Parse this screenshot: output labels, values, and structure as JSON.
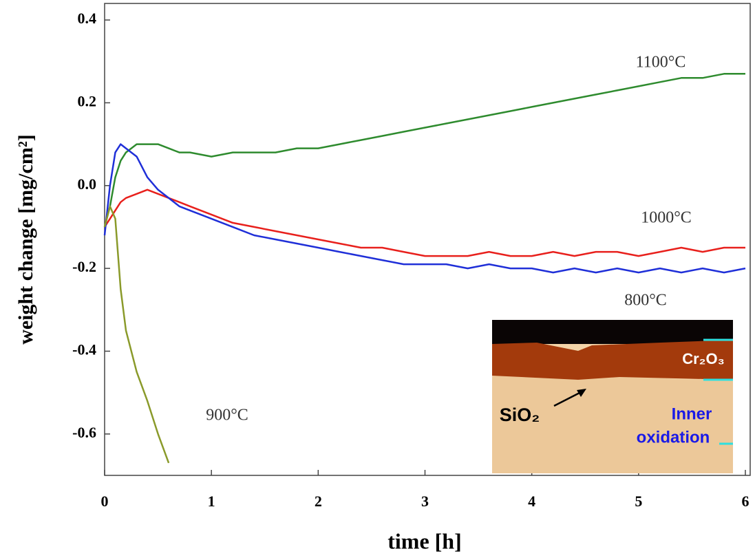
{
  "chart_data": {
    "type": "line",
    "xlabel": "time [h]",
    "ylabel": "weight change [mg/cm²]",
    "x": [
      0,
      0.05,
      0.1,
      0.15,
      0.2,
      0.3,
      0.4,
      0.5,
      0.6,
      0.7,
      0.8,
      1.0,
      1.2,
      1.4,
      1.6,
      1.8,
      2.0,
      2.2,
      2.4,
      2.6,
      2.8,
      3.0,
      3.2,
      3.4,
      3.6,
      3.8,
      4.0,
      4.2,
      4.4,
      4.6,
      4.8,
      5.0,
      5.2,
      5.4,
      5.6,
      5.8,
      6.0
    ],
    "series": [
      {
        "name": "1100°C",
        "color": "#2e8b2e",
        "values": [
          -0.1,
          -0.05,
          0.02,
          0.06,
          0.08,
          0.1,
          0.1,
          0.1,
          0.09,
          0.08,
          0.08,
          0.07,
          0.08,
          0.08,
          0.08,
          0.09,
          0.09,
          0.1,
          0.11,
          0.12,
          0.13,
          0.14,
          0.15,
          0.16,
          0.17,
          0.18,
          0.19,
          0.2,
          0.21,
          0.22,
          0.23,
          0.24,
          0.25,
          0.26,
          0.26,
          0.27,
          0.27
        ]
      },
      {
        "name": "1000°C",
        "color": "#e8201c",
        "values": [
          -0.1,
          -0.08,
          -0.06,
          -0.04,
          -0.03,
          -0.02,
          -0.01,
          -0.02,
          -0.03,
          -0.04,
          -0.05,
          -0.07,
          -0.09,
          -0.1,
          -0.11,
          -0.12,
          -0.13,
          -0.14,
          -0.15,
          -0.15,
          -0.16,
          -0.17,
          -0.17,
          -0.17,
          -0.16,
          -0.17,
          -0.17,
          -0.16,
          -0.17,
          -0.16,
          -0.16,
          -0.17,
          -0.16,
          -0.15,
          -0.16,
          -0.15,
          -0.15
        ]
      },
      {
        "name": "800°C",
        "color": "#1f2fd8",
        "values": [
          -0.12,
          0.0,
          0.08,
          0.1,
          0.09,
          0.07,
          0.02,
          -0.01,
          -0.03,
          -0.05,
          -0.06,
          -0.08,
          -0.1,
          -0.12,
          -0.13,
          -0.14,
          -0.15,
          -0.16,
          -0.17,
          -0.18,
          -0.19,
          -0.19,
          -0.19,
          -0.2,
          -0.19,
          -0.2,
          -0.2,
          -0.21,
          -0.2,
          -0.21,
          -0.2,
          -0.21,
          -0.2,
          -0.21,
          -0.2,
          -0.21,
          -0.2
        ]
      },
      {
        "name": "900°C",
        "color": "#8a9a2a",
        "values": [
          -0.1,
          -0.05,
          -0.08,
          -0.25,
          -0.35,
          -0.45,
          -0.52,
          -0.6,
          -0.67,
          null,
          null,
          null,
          null,
          null,
          null,
          null,
          null,
          null,
          null,
          null,
          null,
          null,
          null,
          null,
          null,
          null,
          null,
          null,
          null,
          null,
          null,
          null,
          null,
          null,
          null,
          null,
          null
        ]
      }
    ],
    "xlim": [
      0,
      6
    ],
    "xticks": [
      0,
      1,
      2,
      3,
      4,
      5,
      6
    ],
    "ylim": [
      -0.7,
      0.44
    ],
    "yticks": [
      0.4,
      0.2,
      {
        "value": 0,
        "label": "0.0"
      },
      -0.2,
      -0.4,
      -0.6
    ],
    "inset": {
      "oxide": "Cr₂O₃",
      "precipitate": "SiO₂",
      "zone": [
        "Inner",
        "oxidation"
      ]
    }
  }
}
